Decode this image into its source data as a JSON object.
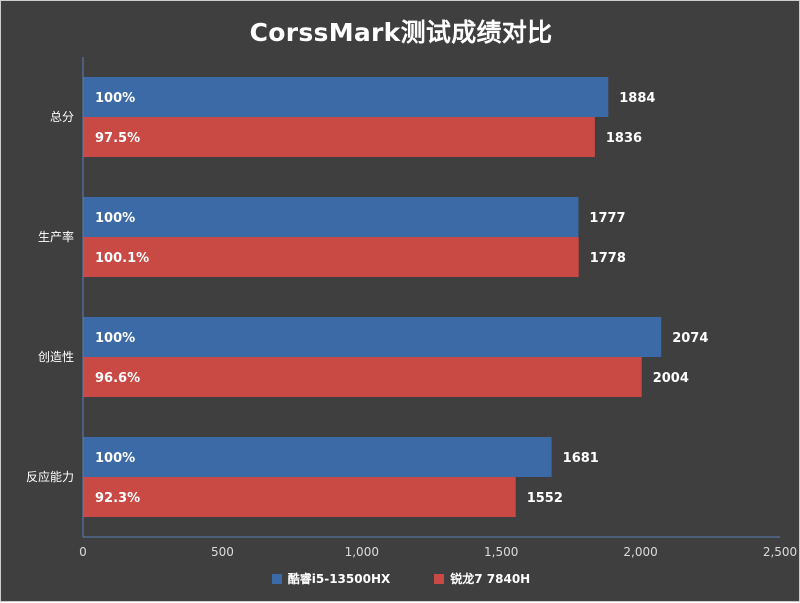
{
  "chart_data": {
    "type": "bar",
    "orientation": "horizontal",
    "title": "CorssMark测试成绩对比",
    "categories": [
      "总分",
      "生产率",
      "创造性",
      "反应能力"
    ],
    "series": [
      {
        "name": "酷睿i5-13500HX",
        "color": "#3b6aa6",
        "values": [
          1884,
          1777,
          2074,
          1681
        ],
        "labels": [
          "100%",
          "100%",
          "100%",
          "100%"
        ]
      },
      {
        "name": "锐龙7 7840H",
        "color": "#c94a45",
        "values": [
          1836,
          1778,
          2004,
          1552
        ],
        "labels": [
          "97.5%",
          "100.1%",
          "96.6%",
          "92.3%"
        ]
      }
    ],
    "xlim": [
      0,
      2500
    ],
    "xticks": [
      0,
      500,
      1000,
      1500,
      2000,
      2500
    ],
    "xtick_labels": [
      "0",
      "500",
      "1,000",
      "1,500",
      "2,000",
      "2,500"
    ],
    "legend_position": "bottom",
    "grid": false
  }
}
